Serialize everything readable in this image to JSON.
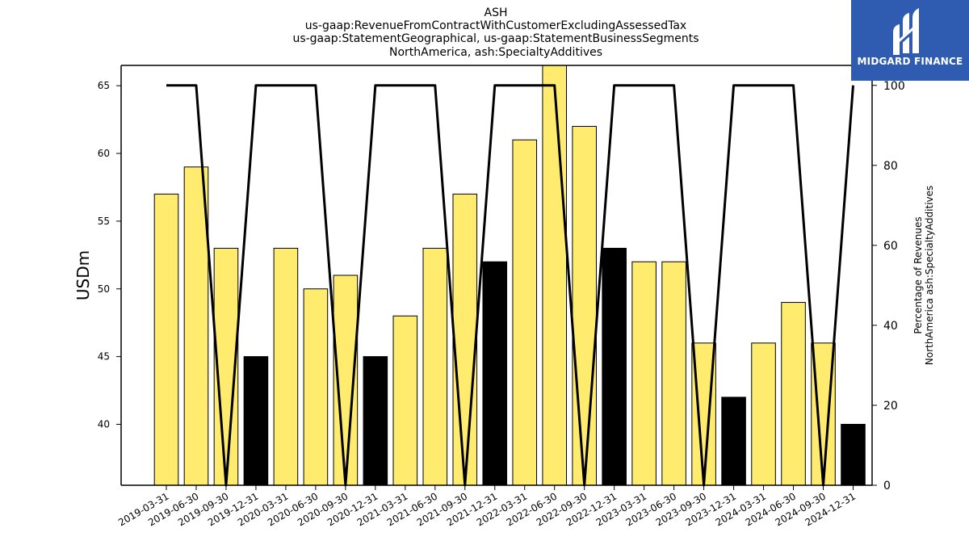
{
  "chart_data": {
    "type": "bar",
    "title_lines": [
      "ASH",
      "us-gaap:RevenueFromContractWithCustomerExcludingAssessedTax",
      "us-gaap:StatementGeographical, us-gaap:StatementBusinessSegments",
      "NorthAmerica, ash:SpecialtyAdditives"
    ],
    "ylabel": "USDm",
    "ylabel_right_lines": [
      "Percentage of Revenues",
      "NorthAmerica ash:SpecialtyAdditives"
    ],
    "categories": [
      "2019-03-31",
      "2019-06-30",
      "2019-09-30",
      "2019-12-31",
      "2020-03-31",
      "2020-06-30",
      "2020-09-30",
      "2020-12-31",
      "2021-03-31",
      "2021-06-30",
      "2021-09-30",
      "2021-12-31",
      "2022-03-31",
      "2022-06-30",
      "2022-09-30",
      "2022-12-31",
      "2023-03-31",
      "2023-06-30",
      "2023-09-30",
      "2023-12-31",
      "2024-03-31",
      "2024-06-30",
      "2024-09-30",
      "2024-12-31"
    ],
    "values": [
      57,
      59,
      53,
      45,
      53,
      50,
      51,
      45,
      48,
      53,
      57,
      52,
      61,
      67,
      62,
      53,
      52,
      52,
      46,
      42,
      46,
      49,
      46,
      40
    ],
    "bar_kind": [
      "q",
      "q",
      "q",
      "fy",
      "q",
      "q",
      "q",
      "fy",
      "q",
      "q",
      "q",
      "fy",
      "q",
      "q",
      "q",
      "fy",
      "q",
      "q",
      "q",
      "fy",
      "q",
      "q",
      "q",
      "fy"
    ],
    "percentage_values": [
      100,
      100,
      0,
      100,
      100,
      100,
      0,
      100,
      100,
      100,
      0,
      100,
      100,
      100,
      0,
      100,
      100,
      100,
      0,
      100,
      100,
      100,
      0,
      100
    ],
    "ylim": [
      35.5,
      66.5
    ],
    "yticks": [
      40,
      45,
      50,
      55,
      60,
      65
    ],
    "ylim_right": [
      0,
      105
    ],
    "yticks_right": [
      0,
      20,
      40,
      60,
      80,
      100
    ],
    "colors": {
      "quarter_bar": "#ffec6e",
      "annual_bar": "#000000",
      "line": "#000000"
    }
  },
  "logo": {
    "text": "MIDGARD FINANCE",
    "background": "#2f5cb0"
  }
}
